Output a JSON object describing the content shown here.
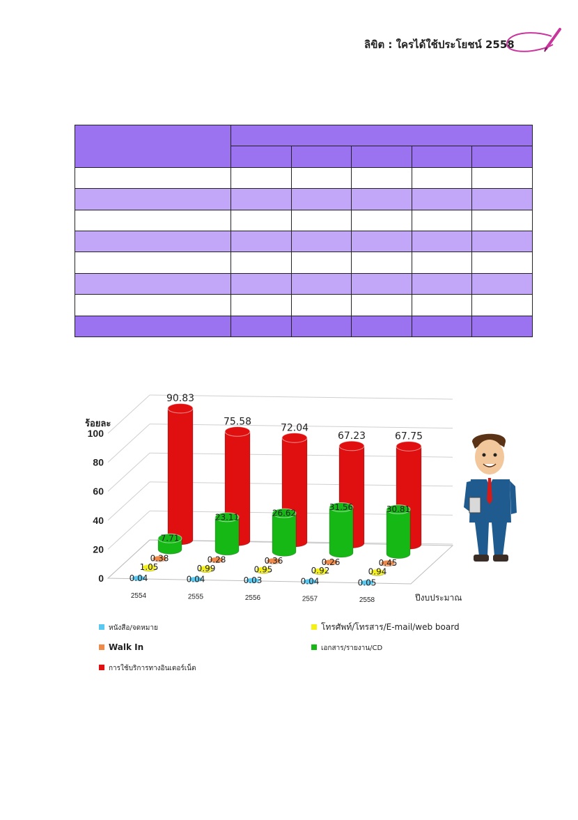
{
  "header": {
    "title": "ลิขิต : ใครได้ใช้ประโยชน์ 2558"
  },
  "chart_data": {
    "type": "bar",
    "title": "",
    "ylabel": "ร้อยละ",
    "xlabel": "ปีงบประมาณ",
    "categories": [
      "2554",
      "2555",
      "2556",
      "2557",
      "2558"
    ],
    "ylim": [
      0,
      100
    ],
    "yticks": [
      "0",
      "20",
      "40",
      "60",
      "80",
      "100"
    ],
    "legend_position": "bottom",
    "series": [
      {
        "name": "หนังสือ/จดหมาย",
        "color": "#5bc8f0",
        "values": [
          0.04,
          0.04,
          0.03,
          0.04,
          0.05
        ],
        "labels": [
          "0.04",
          "0.04",
          "0.03",
          "0.04",
          "0.05"
        ]
      },
      {
        "name": "โทรศัพท์/โทรสาร/E-mail/web board",
        "color": "#f5f014",
        "values": [
          1.05,
          0.99,
          0.95,
          0.92,
          0.94
        ],
        "labels": [
          "1.05",
          "0.99",
          "0.95",
          "0.92",
          "0.94"
        ]
      },
      {
        "name": "Walk In",
        "color": "#f08a4b",
        "values": [
          0.38,
          0.28,
          0.36,
          0.26,
          0.45
        ],
        "labels": [
          "0.38",
          "0.28",
          "0.36",
          "0.26",
          "0.45"
        ]
      },
      {
        "name": "เอกสาร/รายงาน/CD",
        "color": "#15b815",
        "values": [
          7.71,
          23.11,
          26.62,
          31.56,
          30.81
        ],
        "labels": [
          "7.71",
          "23.11",
          "26.62",
          "31.56",
          "30.81"
        ]
      },
      {
        "name": "การใช้บริการทางอินเตอร์เน็ต",
        "color": "#e01010",
        "values": [
          90.83,
          75.58,
          72.04,
          67.23,
          67.75
        ],
        "labels": [
          "90.83",
          "75.58",
          "72.04",
          "67.23",
          "67.75"
        ]
      }
    ]
  }
}
